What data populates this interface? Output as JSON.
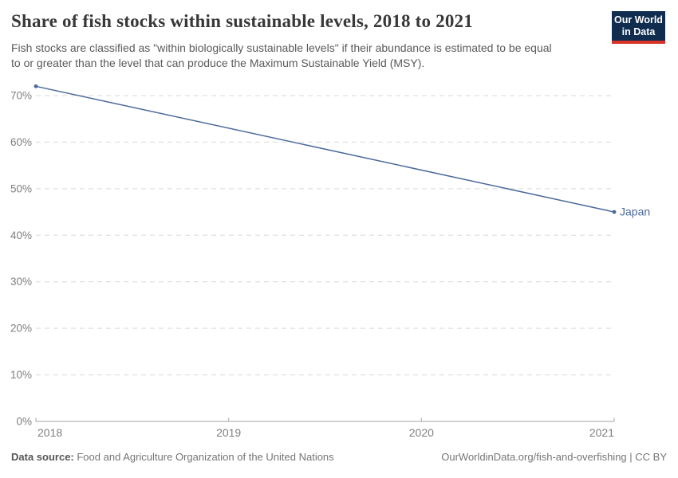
{
  "header": {
    "title": "Share of fish stocks within sustainable levels, 2018 to 2021",
    "subtitle_lines": [
      "Fish stocks are classified as \"within biologically sustainable levels\" if their abundance is estimated to be equal",
      "to or greater than the level that can produce the Maximum Sustainable Yield (MSY)."
    ],
    "logo": {
      "line1": "Our World",
      "line2": "in Data"
    }
  },
  "chart_data": {
    "type": "line",
    "title": "Share of fish stocks within sustainable levels, 2018 to 2021",
    "xlabel": "",
    "ylabel": "",
    "x": [
      2018,
      2021
    ],
    "series": [
      {
        "name": "Japan",
        "values": [
          72,
          45
        ],
        "color": "#4c6a9c"
      }
    ],
    "xlim": [
      2018,
      2021
    ],
    "ylim": [
      0,
      70
    ],
    "xticks": [
      2018,
      2019,
      2020,
      2021
    ],
    "yticks": [
      0,
      10,
      20,
      30,
      40,
      50,
      60,
      70
    ],
    "y_suffix": "%",
    "grid": "horizontal-dashed",
    "legend": "end-of-line-label"
  },
  "footer": {
    "datasource_label": "Data source:",
    "datasource_value": " Food and Agriculture Organization of the United Nations",
    "url": "OurWorldinData.org/fish-and-overfishing",
    "license_suffix": " | CC BY"
  },
  "colors": {
    "line": "#4c6a9c",
    "grid": "#d9d9d9",
    "axis": "#a6a6a6",
    "tick_text": "#7f7f7f",
    "title_text": "#383838",
    "subtitle_text": "#5a5a5a",
    "footer_text": "#757575",
    "logo_bg": "#102d50",
    "logo_bar": "#d8352a"
  }
}
